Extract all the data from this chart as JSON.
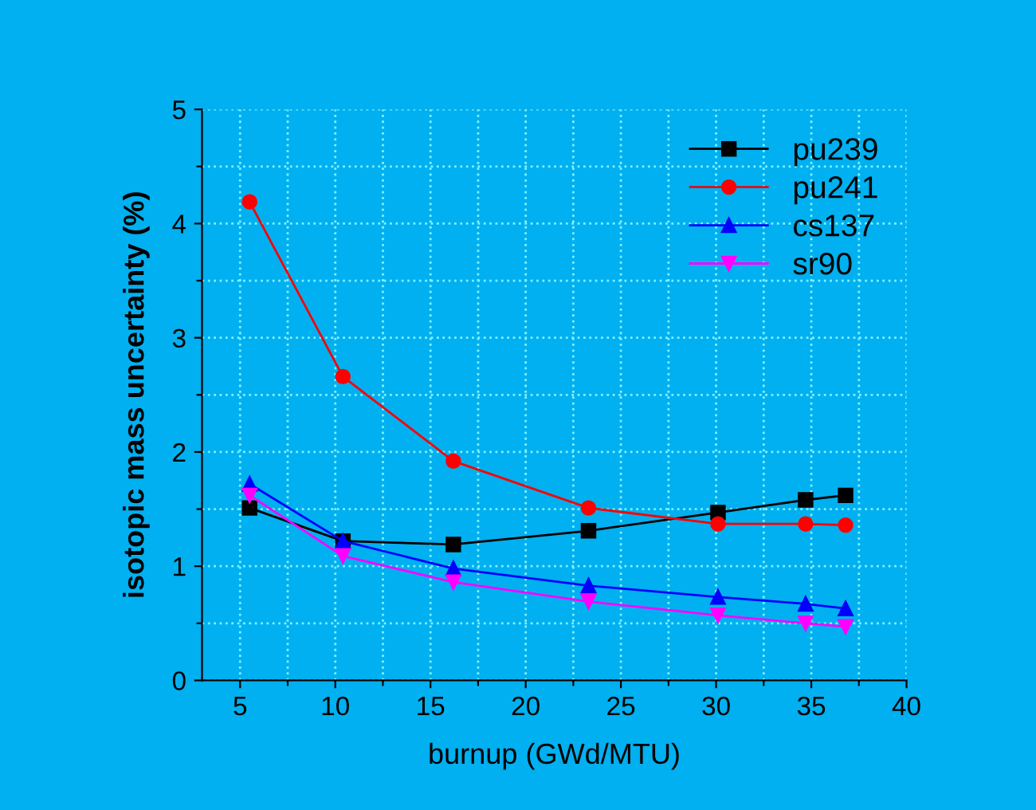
{
  "chart_data": {
    "type": "line",
    "xlabel": "burnup (GWd/MTU)",
    "ylabel": "isotopic mass uncertainty (%)",
    "x": [
      5.5,
      10.4,
      16.2,
      23.3,
      30.1,
      34.7,
      36.8
    ],
    "series": [
      {
        "name": "pu239",
        "color": "#000000",
        "marker": "square",
        "values": [
          1.51,
          1.22,
          1.19,
          1.31,
          1.47,
          1.58,
          1.62
        ]
      },
      {
        "name": "pu241",
        "color": "#ff0000",
        "marker": "circle",
        "values": [
          4.19,
          2.66,
          1.92,
          1.51,
          1.37,
          1.37,
          1.36
        ]
      },
      {
        "name": "cs137",
        "color": "#0000ff",
        "marker": "triangle",
        "values": [
          1.72,
          1.22,
          0.98,
          0.83,
          0.73,
          0.67,
          0.63
        ]
      },
      {
        "name": "sr90",
        "color": "#ff00ff",
        "marker": "triangle_down",
        "values": [
          1.62,
          1.09,
          0.86,
          0.69,
          0.57,
          0.5,
          0.47
        ]
      }
    ],
    "xlim": [
      3,
      40
    ],
    "ylim": [
      0,
      5
    ],
    "xticks": [
      5,
      {
        "value": 7.5,
        "label": null
      },
      10,
      {
        "value": 12.5,
        "label": null
      },
      15,
      {
        "value": 17.5,
        "label": null
      },
      20,
      {
        "value": 22.5,
        "label": null
      },
      25,
      {
        "value": 27.5,
        "label": null
      },
      30,
      {
        "value": 32.5,
        "label": null
      },
      35,
      {
        "value": 37.5,
        "label": null
      },
      40
    ],
    "yticks": [
      0,
      {
        "value": 0.5,
        "label": null
      },
      1,
      {
        "value": 1.5,
        "label": null
      },
      2,
      {
        "value": 2.5,
        "label": null
      },
      3,
      {
        "value": 3.5,
        "label": null
      },
      4,
      {
        "value": 4.5,
        "label": null
      },
      5
    ],
    "grid": true,
    "legend": "top right",
    "line_style": "solid"
  }
}
